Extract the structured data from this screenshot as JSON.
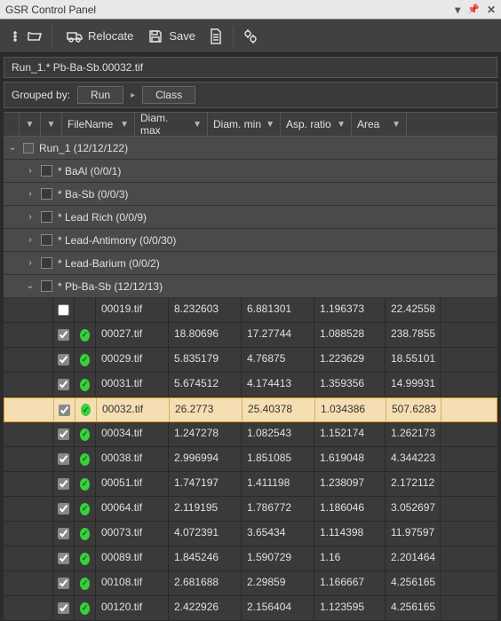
{
  "window": {
    "title": "GSR Control Panel"
  },
  "toolbar": {
    "relocate": "Relocate",
    "save": "Save"
  },
  "breadcrumb": "Run_1.* Pb-Ba-Sb.00032.tif",
  "grouping": {
    "label": "Grouped by:",
    "groups": [
      "Run",
      "Class"
    ]
  },
  "columns": {
    "filename": "FileName",
    "diam_max": "Diam. max",
    "diam_min": "Diam. min",
    "asp_ratio": "Asp. ratio",
    "area": "Area"
  },
  "tree": {
    "root": {
      "label": "Run_1 (12/12/122)",
      "expanded": true
    },
    "classes": [
      {
        "label": "* BaAl (0/0/1)",
        "expanded": false
      },
      {
        "label": "* Ba-Sb (0/0/3)",
        "expanded": false
      },
      {
        "label": "* Lead Rich (0/0/9)",
        "expanded": false
      },
      {
        "label": "* Lead-Antimony (0/0/30)",
        "expanded": false
      },
      {
        "label": "* Lead-Barium (0/0/2)",
        "expanded": false
      },
      {
        "label": "* Pb-Ba-Sb (12/12/13)",
        "expanded": true
      }
    ]
  },
  "rows": [
    {
      "file": "00019.tif",
      "dmax": "8.232603",
      "dmin": "6.881301",
      "asp": "1.196373",
      "area": "22.42558",
      "checked": false,
      "status": false,
      "selected": false
    },
    {
      "file": "00027.tif",
      "dmax": "18.80696",
      "dmin": "17.27744",
      "asp": "1.088528",
      "area": "238.7855",
      "checked": true,
      "status": true,
      "selected": false
    },
    {
      "file": "00029.tif",
      "dmax": "5.835179",
      "dmin": "4.76875",
      "asp": "1.223629",
      "area": "18.55101",
      "checked": true,
      "status": true,
      "selected": false
    },
    {
      "file": "00031.tif",
      "dmax": "5.674512",
      "dmin": "4.174413",
      "asp": "1.359356",
      "area": "14.99931",
      "checked": true,
      "status": true,
      "selected": false
    },
    {
      "file": "00032.tif",
      "dmax": "26.2773",
      "dmin": "25.40378",
      "asp": "1.034386",
      "area": "507.6283",
      "checked": true,
      "status": true,
      "selected": true
    },
    {
      "file": "00034.tif",
      "dmax": "1.247278",
      "dmin": "1.082543",
      "asp": "1.152174",
      "area": "1.262173",
      "checked": true,
      "status": true,
      "selected": false
    },
    {
      "file": "00038.tif",
      "dmax": "2.996994",
      "dmin": "1.851085",
      "asp": "1.619048",
      "area": "4.344223",
      "checked": true,
      "status": true,
      "selected": false
    },
    {
      "file": "00051.tif",
      "dmax": "1.747197",
      "dmin": "1.411198",
      "asp": "1.238097",
      "area": "2.172112",
      "checked": true,
      "status": true,
      "selected": false
    },
    {
      "file": "00064.tif",
      "dmax": "2.119195",
      "dmin": "1.786772",
      "asp": "1.186046",
      "area": "3.052697",
      "checked": true,
      "status": true,
      "selected": false
    },
    {
      "file": "00073.tif",
      "dmax": "4.072391",
      "dmin": "3.65434",
      "asp": "1.114398",
      "area": "11.97597",
      "checked": true,
      "status": true,
      "selected": false
    },
    {
      "file": "00089.tif",
      "dmax": "1.845246",
      "dmin": "1.590729",
      "asp": "1.16",
      "area": "2.201464",
      "checked": true,
      "status": true,
      "selected": false
    },
    {
      "file": "00108.tif",
      "dmax": "2.681688",
      "dmin": "2.29859",
      "asp": "1.166667",
      "area": "4.256165",
      "checked": true,
      "status": true,
      "selected": false
    },
    {
      "file": "00120.tif",
      "dmax": "2.422926",
      "dmin": "2.156404",
      "asp": "1.123595",
      "area": "4.256165",
      "checked": true,
      "status": true,
      "selected": false
    }
  ],
  "colors": {
    "bg": "#2b2b2b",
    "panel": "#3a3a3a",
    "row": "#3a3a3a",
    "group": "#4a4a4a",
    "selected_bg": "#f5deb3",
    "selected_border": "#e0a020",
    "status_ok": "#3bcf3b",
    "text": "#e0e0e0",
    "titlebar_bg": "#e8e8e8",
    "titlebar_text": "#333333"
  }
}
